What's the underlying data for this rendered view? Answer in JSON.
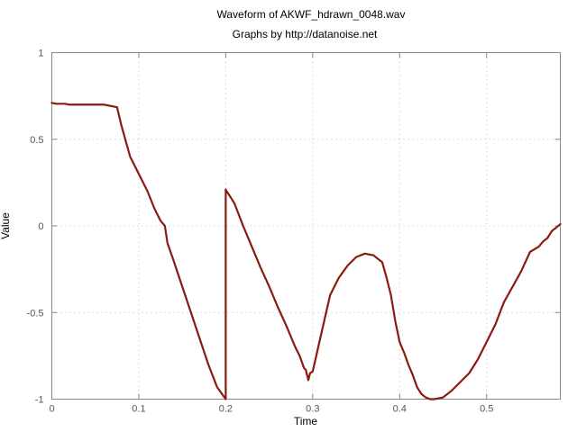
{
  "chart_data": {
    "type": "line",
    "title": "Waveform of AKWF_hdrawn_0048.wav",
    "subtitle": "Graphs by http://datanoise.net",
    "xlabel": "Time",
    "ylabel": "Value",
    "xlim": [
      0,
      0.5848
    ],
    "ylim": [
      -1,
      1
    ],
    "x_ticks": [
      0,
      0.1,
      0.2,
      0.3,
      0.4,
      0.5
    ],
    "x_tick_labels": [
      "0",
      "0.1",
      "0.2",
      "0.3",
      "0.4",
      "0.5"
    ],
    "y_ticks": [
      -1,
      -0.5,
      0,
      0.5,
      1
    ],
    "y_tick_labels": [
      "-1",
      "-0.5",
      "0",
      "0.5",
      "1"
    ],
    "grid": true,
    "series": [
      {
        "color": "#8b1a10",
        "x": [
          0,
          0.005,
          0.015,
          0.02,
          0.06,
          0.07,
          0.075,
          0.08,
          0.09,
          0.1,
          0.11,
          0.118,
          0.125,
          0.13,
          0.133,
          0.14,
          0.15,
          0.16,
          0.17,
          0.18,
          0.19,
          0.2,
          0.2,
          0.201,
          0.205,
          0.21,
          0.22,
          0.23,
          0.24,
          0.25,
          0.26,
          0.27,
          0.28,
          0.285,
          0.29,
          0.292,
          0.295,
          0.297,
          0.3,
          0.31,
          0.32,
          0.33,
          0.34,
          0.35,
          0.36,
          0.37,
          0.375,
          0.38,
          0.385,
          0.39,
          0.395,
          0.4,
          0.405,
          0.41,
          0.415,
          0.42,
          0.425,
          0.43,
          0.435,
          0.44,
          0.45,
          0.46,
          0.47,
          0.48,
          0.49,
          0.5,
          0.51,
          0.52,
          0.53,
          0.54,
          0.55,
          0.56,
          0.565,
          0.57,
          0.575,
          0.58,
          0.5848
        ],
        "values": [
          0.71,
          0.705,
          0.705,
          0.7,
          0.7,
          0.69,
          0.685,
          0.58,
          0.4,
          0.3,
          0.2,
          0.1,
          0.03,
          0.0,
          -0.1,
          -0.2,
          -0.35,
          -0.5,
          -0.65,
          -0.8,
          -0.93,
          -1.0,
          0.21,
          0.2,
          0.17,
          0.13,
          0.0,
          -0.12,
          -0.24,
          -0.35,
          -0.47,
          -0.58,
          -0.7,
          -0.75,
          -0.82,
          -0.83,
          -0.89,
          -0.85,
          -0.84,
          -0.62,
          -0.4,
          -0.3,
          -0.23,
          -0.18,
          -0.16,
          -0.17,
          -0.19,
          -0.21,
          -0.3,
          -0.4,
          -0.55,
          -0.67,
          -0.73,
          -0.8,
          -0.86,
          -0.93,
          -0.97,
          -0.99,
          -1.0,
          -1.0,
          -0.99,
          -0.95,
          -0.9,
          -0.85,
          -0.77,
          -0.67,
          -0.57,
          -0.44,
          -0.35,
          -0.26,
          -0.15,
          -0.12,
          -0.09,
          -0.07,
          -0.03,
          -0.01,
          0.01
        ]
      }
    ]
  }
}
